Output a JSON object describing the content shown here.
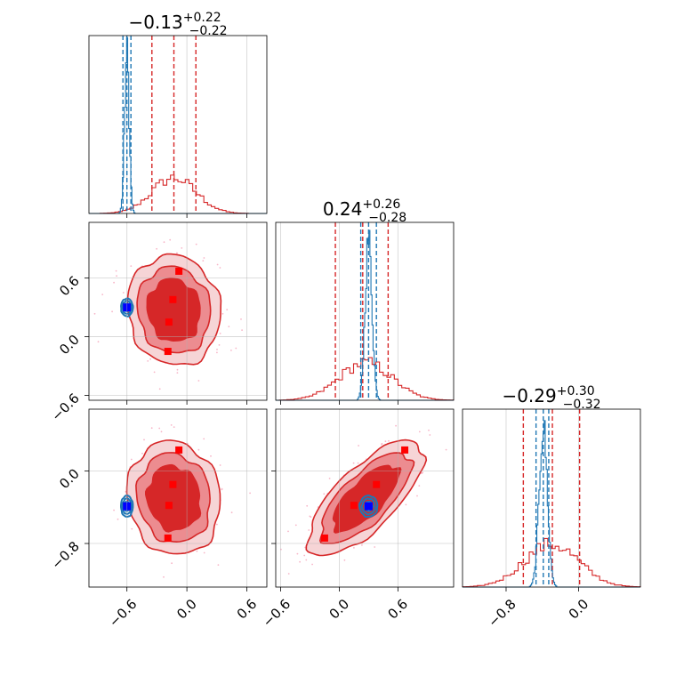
{
  "chart_data": {
    "type": "corner",
    "description": "",
    "colors": {
      "posterior_a": "#d62728",
      "posterior_b": "#1f77b4",
      "markers_a": "#ff0000",
      "marker_b": "#0000ff",
      "grid": "#b0b0b0"
    },
    "parameters": [
      {
        "title_value": "−0.13",
        "title_plus": "+0.22",
        "title_minus": "−0.22",
        "range": [
          -0.98,
          0.8
        ],
        "ticks": [
          -0.6,
          0.0,
          0.6
        ],
        "tick_labels": [
          "−0.6",
          "0.0",
          "0.6"
        ],
        "red_quantiles": [
          -0.35,
          -0.13,
          0.09
        ],
        "blue_quantiles": [
          -0.64,
          -0.6,
          -0.56
        ],
        "red_hist": {
          "mean": -0.13,
          "sd": 0.22,
          "peak_frac": 0.2
        },
        "blue_hist": {
          "mean": -0.6,
          "sd": 0.023,
          "peak_frac": 0.9
        }
      },
      {
        "title_value": "0.24",
        "title_plus": "+0.26",
        "title_minus": "−0.28",
        "range": [
          -0.65,
          1.17
        ],
        "ticks": [
          -0.6,
          0.0,
          0.6
        ],
        "tick_labels": [
          "−0.6",
          "0.0",
          "0.6"
        ],
        "red_quantiles": [
          -0.04,
          0.24,
          0.5
        ],
        "blue_quantiles": [
          0.22,
          0.3,
          0.38
        ],
        "red_hist": {
          "mean": 0.27,
          "sd": 0.27,
          "peak_frac": 0.21
        },
        "blue_hist": {
          "mean": 0.3,
          "sd": 0.035,
          "peak_frac": 0.9
        }
      },
      {
        "title_value": "−0.29",
        "title_plus": "+0.30",
        "title_minus": "−0.32",
        "range": [
          -1.28,
          0.68
        ],
        "ticks": [
          -0.8,
          0.0
        ],
        "tick_labels": [
          "−0.8",
          "0.0"
        ],
        "red_quantiles": [
          -0.61,
          -0.29,
          0.01
        ],
        "blue_quantiles": [
          -0.47,
          -0.39,
          -0.33
        ],
        "red_hist": {
          "mean": -0.3,
          "sd": 0.3,
          "peak_frac": 0.24
        },
        "blue_hist": {
          "mean": -0.39,
          "sd": 0.045,
          "peak_frac": 0.9
        }
      }
    ],
    "red_markers": {
      "p1": [
        -0.08,
        -0.14,
        -0.18,
        -0.19
      ],
      "p2": [
        0.67,
        0.38,
        0.15,
        -0.15
      ],
      "p3": [
        0.23,
        -0.15,
        -0.38,
        -0.74
      ]
    },
    "blue_marker": {
      "p1": -0.6,
      "p2": 0.3,
      "p3": -0.39
    }
  }
}
